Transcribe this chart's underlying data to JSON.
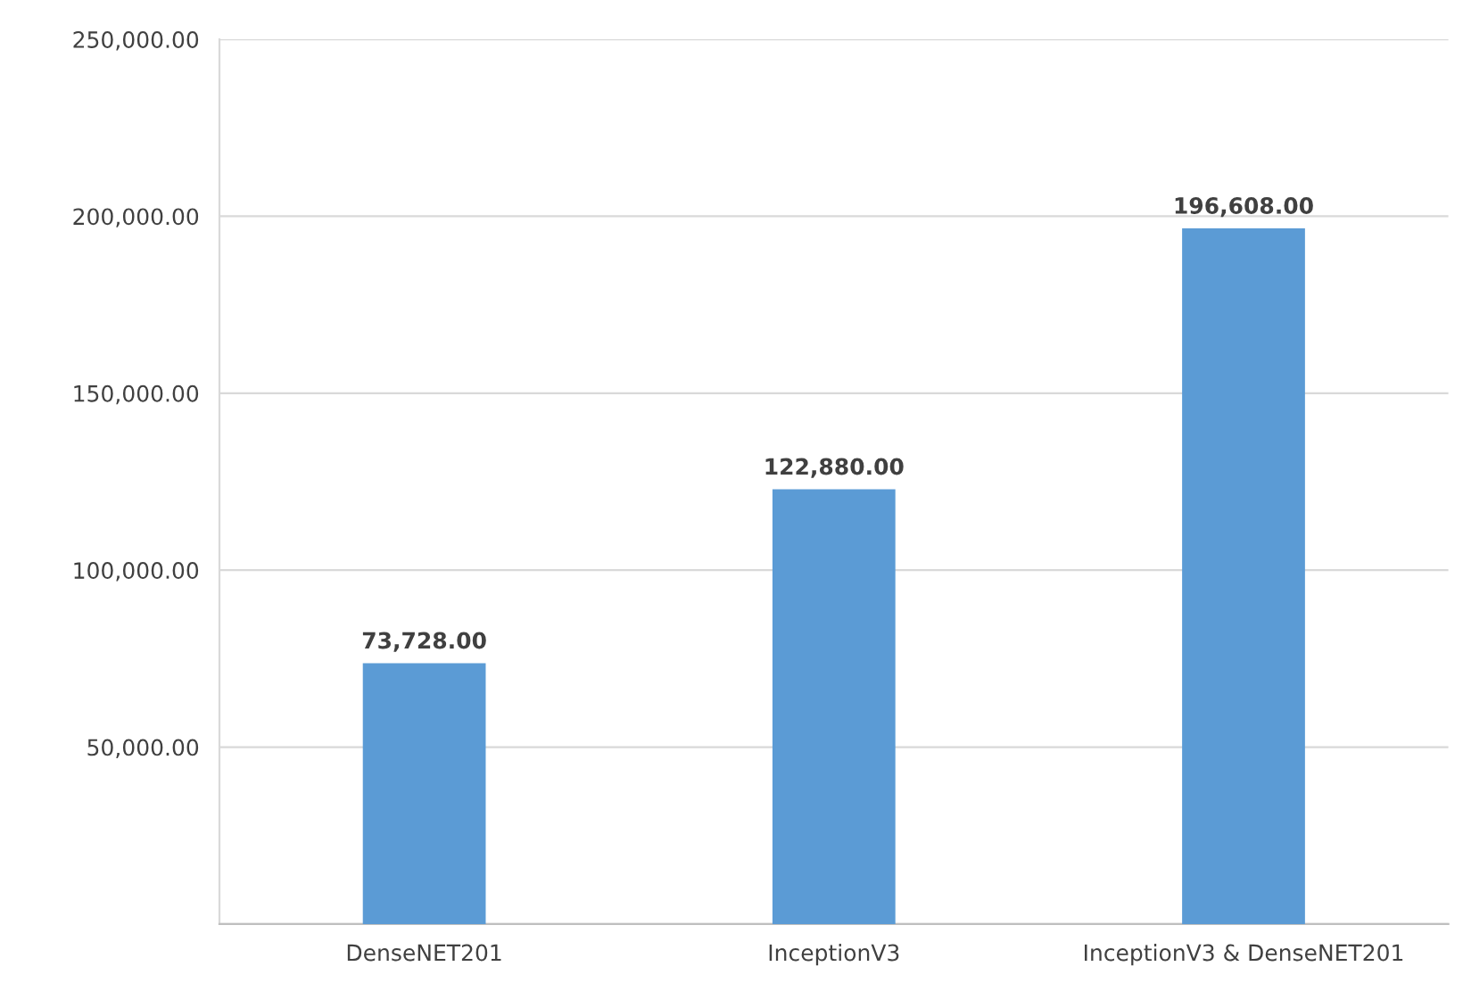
{
  "chart_data": {
    "type": "bar",
    "categories": [
      "DenseNET201",
      "InceptionV3",
      "InceptionV3 & DenseNET201"
    ],
    "values": [
      73728,
      122880,
      196608
    ],
    "value_labels": [
      "73,728.00",
      "122,880.00",
      "196,608.00"
    ],
    "color": "#5b9bd5",
    "ylim": [
      0,
      250000
    ],
    "yticks": [
      {
        "value": 0,
        "label": null
      },
      {
        "value": 50000,
        "label": "50,000.00"
      },
      {
        "value": 100000,
        "label": "100,000.00"
      },
      {
        "value": 150000,
        "label": "150,000.00"
      },
      {
        "value": 200000,
        "label": "200,000.00"
      },
      {
        "value": 250000,
        "label": "250,000.00"
      }
    ],
    "grid": "y",
    "legend": false
  }
}
